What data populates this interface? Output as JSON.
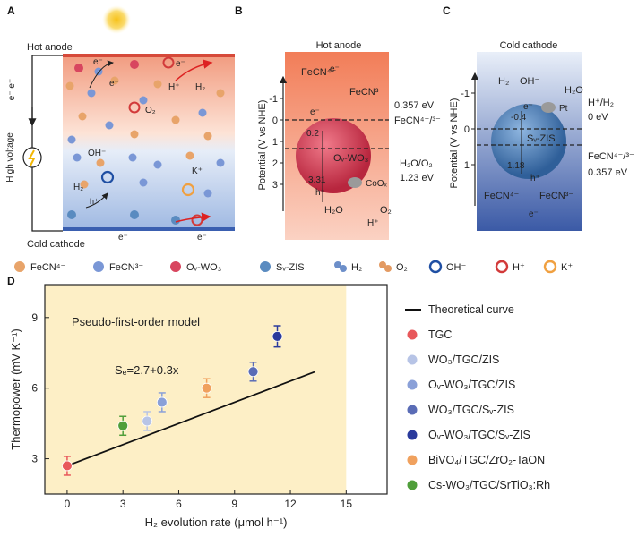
{
  "panels": {
    "a_letter": "A",
    "b_letter": "B",
    "c_letter": "C",
    "d_letter": "D"
  },
  "panel_a": {
    "hot_anode": "Hot anode",
    "cold_cathode": "Cold cathode",
    "high_voltage": "High voltage",
    "e_e": "e⁻ e⁻",
    "e": "e⁻",
    "h_plus": "H⁺",
    "h2": "H₂",
    "o2": "O₂",
    "oh": "OH⁻",
    "k_plus": "K⁺"
  },
  "legend_top": [
    {
      "label": "FeCN⁴⁻",
      "color": "#e8a46a"
    },
    {
      "label": "FeCN³⁻",
      "color": "#7a97d6"
    },
    {
      "label": "Oᵥ-WO₃",
      "color": "#d8465f"
    },
    {
      "label": "Sᵥ-ZIS",
      "color": "#5a8bc0"
    },
    {
      "label": "H₂",
      "color": "#6d8fc9"
    },
    {
      "label": "O₂",
      "color": "#e39a62"
    },
    {
      "label": "OH⁻",
      "color": "#1f4fa3"
    },
    {
      "label": "H⁺",
      "color": "#d23a3a"
    },
    {
      "label": "K⁺",
      "color": "#f0a040"
    }
  ],
  "panel_b": {
    "title": "Hot anode",
    "ylabel": "Potential (V vs NHE)",
    "ticks": [
      "-1",
      "0",
      "1",
      "2",
      "3"
    ],
    "fecn4": "FeCN⁴⁻",
    "fecn3": "FeCN³⁻",
    "e": "e⁻",
    "h": "h⁺",
    "level1_value": "0.357 eV",
    "level1_label": "FeCN⁴⁻/³⁻",
    "level2_label": "H₂O/O₂",
    "level2_value": "1.23 eV",
    "cb_value": "0.2",
    "vb_value": "3.31",
    "material": "Oᵥ-WO₃",
    "cocat": "CoOₓ",
    "h2o": "H₂O",
    "o2": "O₂",
    "hplus": "H⁺"
  },
  "panel_c": {
    "title": "Cold cathode",
    "ylabel": "Potential (V vs NHE)",
    "ticks": [
      "-1",
      "0",
      "1"
    ],
    "h2": "H₂",
    "oh": "OH⁻",
    "h2o": "H₂O",
    "pt": "Pt",
    "level1_label": "H⁺/H₂",
    "level1_value": "0 eV",
    "level2_label": "FeCN⁴⁻/³⁻",
    "level2_value": "0.357 eV",
    "cb_value": "-0.4",
    "vb_value": "1.18",
    "material": "Sᵥ-ZIS",
    "e": "e⁻",
    "h": "h⁺",
    "fecn4": "FeCN⁴⁻",
    "fecn3": "FeCN³⁻"
  },
  "chart_data": {
    "type": "scatter",
    "annotation_model": "Pseudo-first-order model",
    "annotation_fit": "Sₑ=2.7+0.3x",
    "xlabel": "H₂ evolution rate (μmol h⁻¹)",
    "ylabel": "Thermopower (mV K⁻¹)",
    "xlim": [
      -1.2,
      17.2
    ],
    "ylim": [
      1.5,
      10.4
    ],
    "xticks": [
      0,
      3,
      6,
      9,
      12,
      15
    ],
    "yticks": [
      3,
      6,
      9
    ],
    "shaded_region_x": [
      -1.2,
      15
    ],
    "shade_color": "#fdefc6",
    "line": {
      "label": "Theoretical curve",
      "intercept": 2.7,
      "slope": 0.3,
      "x_range": [
        0,
        13.3
      ]
    },
    "series": [
      {
        "name": "TGC",
        "x": 0,
        "y": 2.7,
        "err": 0.4,
        "color": "#e8585b"
      },
      {
        "name": "WO₃/TGC/ZIS",
        "x": 4.3,
        "y": 4.6,
        "err": 0.4,
        "color": "#b7c4e6"
      },
      {
        "name": "Oᵥ-WO₃/TGC/ZIS",
        "x": 5.1,
        "y": 5.4,
        "err": 0.4,
        "color": "#8aa0d8"
      },
      {
        "name": "WO₃/TGC/Sᵥ-ZIS",
        "x": 10.0,
        "y": 6.7,
        "err": 0.4,
        "color": "#5a6cb6"
      },
      {
        "name": "Oᵥ-WO₃/TGC/Sᵥ-ZIS",
        "x": 11.3,
        "y": 8.2,
        "err": 0.45,
        "color": "#2a3a9c"
      },
      {
        "name": "BiVO₄/TGC/ZrO₂-TaON",
        "x": 7.5,
        "y": 6.0,
        "err": 0.4,
        "color": "#f0a15e"
      },
      {
        "name": "Cs-WO₃/TGC/SrTiO₃:Rh",
        "x": 3.0,
        "y": 4.4,
        "err": 0.4,
        "color": "#4f9e3a"
      }
    ]
  }
}
